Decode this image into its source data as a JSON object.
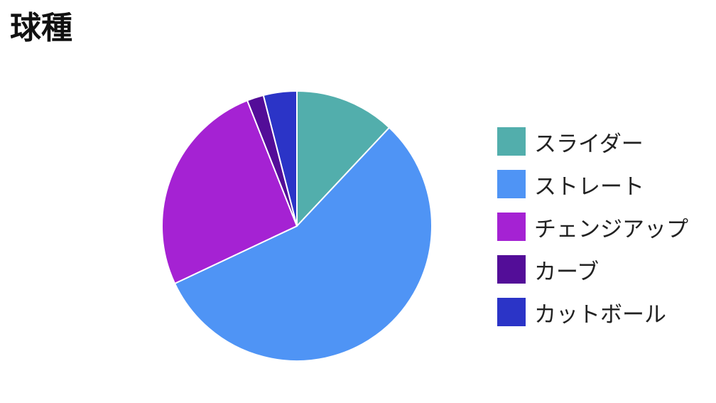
{
  "chart_data": {
    "type": "pie",
    "title": "球種",
    "legend_position": "right",
    "slices": [
      {
        "label": "スライダー",
        "value": 12,
        "color": "#52AEAC"
      },
      {
        "label": "ストレート",
        "value": 56,
        "color": "#4F94F5"
      },
      {
        "label": "チェンジアップ",
        "value": 26,
        "color": "#A522D3"
      },
      {
        "label": "カーブ",
        "value": 2,
        "color": "#530D98"
      },
      {
        "label": "カットボール",
        "value": 4,
        "color": "#2B34C7"
      }
    ]
  }
}
